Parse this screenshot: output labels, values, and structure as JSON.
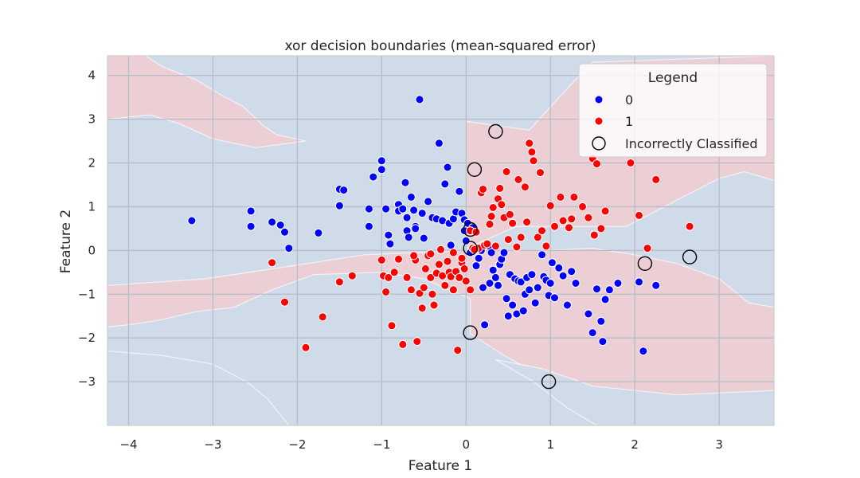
{
  "chart_data": {
    "type": "scatter",
    "title": "xor decision boundaries (mean-squared error)",
    "xlabel": "Feature 1",
    "ylabel": "Feature 2",
    "xlim": [
      -4.25,
      3.65
    ],
    "ylim": [
      -4.0,
      4.45
    ],
    "xticks": [
      -4,
      -3,
      -2,
      -1,
      0,
      1,
      2,
      3
    ],
    "yticks": [
      -3,
      -2,
      -1,
      0,
      1,
      2,
      3,
      4
    ],
    "grid": true,
    "legend": {
      "title": "Legend",
      "placement": "top-right",
      "entries": [
        {
          "label": "0",
          "color": "#0000ff",
          "kind": "dot"
        },
        {
          "label": "1",
          "color": "#ff0000",
          "kind": "dot"
        },
        {
          "label": "Incorrectly Classified",
          "color": "#000000",
          "kind": "ring"
        }
      ]
    },
    "colors": {
      "class_0_point": "#0000ff",
      "class_1_point": "#ff0000",
      "region_0": "#cfdbe8",
      "region_1": "#ebcfd5",
      "plot_background": "#eaeaf2",
      "grid": "#b8bcc8"
    },
    "regions": [
      {
        "class": 1,
        "polygon": [
          [
            -4.25,
            4.45
          ],
          [
            -3.8,
            4.45
          ],
          [
            -3.6,
            4.2
          ],
          [
            -3.2,
            3.9
          ],
          [
            -2.9,
            3.55
          ],
          [
            -2.65,
            3.3
          ],
          [
            -2.4,
            2.85
          ],
          [
            -2.25,
            2.65
          ],
          [
            -1.9,
            2.5
          ],
          [
            -2.5,
            2.35
          ],
          [
            -3.0,
            2.55
          ],
          [
            -3.4,
            2.9
          ],
          [
            -3.75,
            3.1
          ],
          [
            -4.0,
            3.05
          ],
          [
            -4.25,
            3.0
          ]
        ]
      },
      {
        "class": 1,
        "polygon": [
          [
            0.0,
            2.95
          ],
          [
            0.75,
            2.75
          ],
          [
            1.15,
            3.6
          ],
          [
            1.5,
            4.3
          ],
          [
            3.65,
            4.45
          ],
          [
            3.65,
            1.6
          ],
          [
            3.3,
            1.8
          ],
          [
            3.0,
            1.65
          ],
          [
            2.35,
            1.0
          ],
          [
            1.9,
            0.55
          ],
          [
            0.6,
            0.55
          ],
          [
            0.0,
            0.05
          ]
        ]
      },
      {
        "class": 1,
        "polygon": [
          [
            -4.25,
            -0.8
          ],
          [
            -3.1,
            -0.65
          ],
          [
            -2.4,
            -0.45
          ],
          [
            -1.2,
            -0.1
          ],
          [
            0.0,
            0.0
          ],
          [
            0.95,
            0.0
          ],
          [
            1.5,
            0.05
          ],
          [
            2.0,
            -0.1
          ],
          [
            2.5,
            -0.3
          ],
          [
            3.0,
            -0.65
          ],
          [
            3.35,
            -1.2
          ],
          [
            3.65,
            -1.3
          ],
          [
            3.65,
            -4.0
          ],
          [
            1.6,
            -4.0
          ],
          [
            1.0,
            -3.0
          ],
          [
            0.45,
            -2.4
          ],
          [
            0.05,
            -1.9
          ],
          [
            0.05,
            -1.1
          ],
          [
            -0.5,
            -0.65
          ],
          [
            -1.0,
            -0.5
          ],
          [
            -1.8,
            -0.55
          ],
          [
            -2.3,
            -0.9
          ],
          [
            -2.75,
            -1.3
          ],
          [
            -3.2,
            -1.4
          ],
          [
            -3.65,
            -1.6
          ],
          [
            -4.0,
            -1.7
          ],
          [
            -4.25,
            -1.75
          ]
        ]
      },
      {
        "class": 0,
        "polygon": [
          [
            -4.25,
            -2.3
          ],
          [
            -3.6,
            -2.4
          ],
          [
            -3.0,
            -2.6
          ],
          [
            -2.6,
            -3.0
          ],
          [
            -2.35,
            -3.4
          ],
          [
            -2.1,
            -4.0
          ],
          [
            -4.25,
            -4.0
          ]
        ]
      },
      {
        "class": 0,
        "polygon": [
          [
            0.35,
            -2.5
          ],
          [
            0.8,
            -3.0
          ],
          [
            1.2,
            -3.6
          ],
          [
            1.55,
            -4.0
          ],
          [
            3.65,
            -4.0
          ],
          [
            3.65,
            -3.2
          ],
          [
            2.5,
            -3.3
          ],
          [
            1.5,
            -3.1
          ],
          [
            0.9,
            -2.7
          ]
        ]
      }
    ],
    "series": [
      {
        "name": "0",
        "points": [
          [
            -3.25,
            0.68
          ],
          [
            -2.55,
            0.9
          ],
          [
            -2.55,
            0.55
          ],
          [
            -2.3,
            0.65
          ],
          [
            -2.2,
            0.58
          ],
          [
            -2.15,
            0.42
          ],
          [
            -2.1,
            0.05
          ],
          [
            -1.75,
            0.4
          ],
          [
            -1.5,
            1.4
          ],
          [
            -1.45,
            1.38
          ],
          [
            -1.5,
            1.02
          ],
          [
            -1.15,
            0.95
          ],
          [
            -1.15,
            0.55
          ],
          [
            -1.1,
            1.68
          ],
          [
            -1.0,
            2.05
          ],
          [
            -1.0,
            1.85
          ],
          [
            -0.95,
            0.95
          ],
          [
            -0.92,
            0.35
          ],
          [
            -0.9,
            0.15
          ],
          [
            -0.8,
            1.05
          ],
          [
            -0.8,
            0.9
          ],
          [
            -0.75,
            0.95
          ],
          [
            -0.72,
            1.55
          ],
          [
            -0.7,
            0.75
          ],
          [
            -0.7,
            0.45
          ],
          [
            -0.68,
            0.3
          ],
          [
            -0.65,
            1.22
          ],
          [
            -0.62,
            0.92
          ],
          [
            -0.6,
            0.55
          ],
          [
            -0.6,
            0.5
          ],
          [
            -0.55,
            3.45
          ],
          [
            -0.52,
            0.85
          ],
          [
            -0.5,
            0.28
          ],
          [
            -0.45,
            1.12
          ],
          [
            -0.4,
            0.75
          ],
          [
            -0.35,
            0.72
          ],
          [
            -0.32,
            2.45
          ],
          [
            -0.28,
            0.68
          ],
          [
            -0.25,
            1.52
          ],
          [
            -0.22,
            1.9
          ],
          [
            -0.2,
            0.62
          ],
          [
            -0.18,
            0.12
          ],
          [
            -0.15,
            0.72
          ],
          [
            -0.12,
            0.88
          ],
          [
            -0.08,
            1.35
          ],
          [
            -0.05,
            0.85
          ],
          [
            -0.02,
            0.7
          ],
          [
            -0.02,
            0.45
          ],
          [
            0.0,
            0.22
          ],
          [
            0.02,
            0.62
          ],
          [
            0.05,
            -0.05
          ],
          [
            0.08,
            0.52
          ],
          [
            0.12,
            -0.35
          ],
          [
            0.15,
            -0.18
          ],
          [
            0.18,
            0.0
          ],
          [
            0.2,
            -0.85
          ],
          [
            0.22,
            -1.7
          ],
          [
            0.25,
            0.12
          ],
          [
            0.27,
            0.1
          ],
          [
            0.28,
            -0.75
          ],
          [
            0.3,
            -0.05
          ],
          [
            0.32,
            -0.45
          ],
          [
            0.35,
            -0.62
          ],
          [
            0.38,
            -0.8
          ],
          [
            0.4,
            -0.32
          ],
          [
            0.42,
            -0.2
          ],
          [
            0.45,
            -0.05
          ],
          [
            0.48,
            -1.1
          ],
          [
            0.5,
            -1.5
          ],
          [
            0.52,
            -0.55
          ],
          [
            0.55,
            -1.25
          ],
          [
            0.58,
            -0.65
          ],
          [
            0.6,
            -1.45
          ],
          [
            0.62,
            -0.7
          ],
          [
            0.65,
            -0.72
          ],
          [
            0.68,
            -1.38
          ],
          [
            0.7,
            -1.0
          ],
          [
            0.72,
            -0.62
          ],
          [
            0.75,
            -0.9
          ],
          [
            0.78,
            -0.55
          ],
          [
            0.82,
            -1.2
          ],
          [
            0.85,
            -0.85
          ],
          [
            0.9,
            -0.1
          ],
          [
            0.92,
            -0.6
          ],
          [
            0.95,
            -0.68
          ],
          [
            0.98,
            -1.03
          ],
          [
            1.0,
            -0.75
          ],
          [
            1.02,
            -0.28
          ],
          [
            1.05,
            -1.08
          ],
          [
            1.1,
            -0.4
          ],
          [
            1.15,
            -0.58
          ],
          [
            1.2,
            -1.25
          ],
          [
            1.25,
            -0.48
          ],
          [
            1.3,
            -0.75
          ],
          [
            1.45,
            -1.45
          ],
          [
            1.5,
            -1.88
          ],
          [
            1.55,
            -0.88
          ],
          [
            1.6,
            -1.62
          ],
          [
            1.62,
            -2.08
          ],
          [
            1.65,
            -1.12
          ],
          [
            1.7,
            -0.9
          ],
          [
            1.8,
            -0.75
          ],
          [
            2.05,
            -0.72
          ],
          [
            2.1,
            -2.3
          ],
          [
            2.25,
            -0.8
          ]
        ]
      },
      {
        "name": "1",
        "points": [
          [
            -2.3,
            -0.28
          ],
          [
            -2.15,
            -1.18
          ],
          [
            -1.9,
            -2.22
          ],
          [
            -1.7,
            -1.52
          ],
          [
            -1.5,
            -0.72
          ],
          [
            -1.35,
            -0.58
          ],
          [
            -1.0,
            -0.22
          ],
          [
            -0.98,
            -0.58
          ],
          [
            -0.95,
            -0.95
          ],
          [
            -0.92,
            -0.62
          ],
          [
            -0.88,
            -1.72
          ],
          [
            -0.85,
            -0.5
          ],
          [
            -0.8,
            -0.2
          ],
          [
            -0.75,
            -2.15
          ],
          [
            -0.7,
            -0.62
          ],
          [
            -0.65,
            -0.9
          ],
          [
            -0.6,
            -0.22
          ],
          [
            -0.58,
            -2.08
          ],
          [
            -0.55,
            -0.98
          ],
          [
            -0.52,
            -1.32
          ],
          [
            -0.5,
            -0.85
          ],
          [
            -0.48,
            -0.42
          ],
          [
            -0.45,
            -0.12
          ],
          [
            -0.42,
            -0.62
          ],
          [
            -0.4,
            -1.0
          ],
          [
            -0.38,
            -1.25
          ],
          [
            -0.35,
            -0.52
          ],
          [
            -0.32,
            -0.32
          ],
          [
            -0.28,
            -0.58
          ],
          [
            -0.25,
            -0.8
          ],
          [
            -0.22,
            -0.25
          ],
          [
            -0.2,
            -0.5
          ],
          [
            -0.18,
            -0.6
          ],
          [
            -0.15,
            -0.05
          ],
          [
            -0.12,
            -0.48
          ],
          [
            -0.1,
            -2.28
          ],
          [
            -0.08,
            -0.62
          ],
          [
            -0.05,
            -0.28
          ],
          [
            -0.02,
            -0.42
          ],
          [
            0.0,
            -0.7
          ],
          [
            0.05,
            0.45
          ],
          [
            0.08,
            0.05
          ],
          [
            0.12,
            0.42
          ],
          [
            0.15,
            0.05
          ],
          [
            0.18,
            1.32
          ],
          [
            0.2,
            1.4
          ],
          [
            0.22,
            0.12
          ],
          [
            0.25,
            0.15
          ],
          [
            0.28,
            0.6
          ],
          [
            0.3,
            0.78
          ],
          [
            0.32,
            0.98
          ],
          [
            0.35,
            0.1
          ],
          [
            0.38,
            1.18
          ],
          [
            0.4,
            1.42
          ],
          [
            0.42,
            1.05
          ],
          [
            0.45,
            0.75
          ],
          [
            0.48,
            1.8
          ],
          [
            0.5,
            0.25
          ],
          [
            0.52,
            0.82
          ],
          [
            0.55,
            0.62
          ],
          [
            0.6,
            0.08
          ],
          [
            0.62,
            1.62
          ],
          [
            0.65,
            0.3
          ],
          [
            0.7,
            1.45
          ],
          [
            0.72,
            0.65
          ],
          [
            0.75,
            2.45
          ],
          [
            0.78,
            2.25
          ],
          [
            0.8,
            2.05
          ],
          [
            0.85,
            0.3
          ],
          [
            0.88,
            1.78
          ],
          [
            0.9,
            0.45
          ],
          [
            0.95,
            0.1
          ],
          [
            1.0,
            1.02
          ],
          [
            1.05,
            0.55
          ],
          [
            1.12,
            1.22
          ],
          [
            1.15,
            0.68
          ],
          [
            1.22,
            0.52
          ],
          [
            1.25,
            0.72
          ],
          [
            1.28,
            1.22
          ],
          [
            1.38,
            1.0
          ],
          [
            1.45,
            0.75
          ],
          [
            1.5,
            2.1
          ],
          [
            1.52,
            0.35
          ],
          [
            1.55,
            1.98
          ],
          [
            1.6,
            0.5
          ],
          [
            1.65,
            0.9
          ],
          [
            1.95,
            2.0
          ],
          [
            2.05,
            0.8
          ],
          [
            2.15,
            0.05
          ],
          [
            2.25,
            1.62
          ],
          [
            2.65,
            0.55
          ],
          [
            -0.42,
            -0.08
          ],
          [
            -0.62,
            -0.12
          ],
          [
            0.1,
            0.02
          ],
          [
            -0.3,
            0.02
          ],
          [
            -0.05,
            -0.18
          ],
          [
            0.05,
            -0.9
          ],
          [
            -0.15,
            -0.9
          ]
        ]
      }
    ],
    "misclassified": [
      [
        0.35,
        2.72
      ],
      [
        0.1,
        1.85
      ],
      [
        0.05,
        0.48
      ],
      [
        0.05,
        0.05
      ],
      [
        0.05,
        -1.88
      ],
      [
        0.98,
        -3.0
      ],
      [
        2.12,
        -0.3
      ],
      [
        2.65,
        -0.15
      ]
    ]
  }
}
